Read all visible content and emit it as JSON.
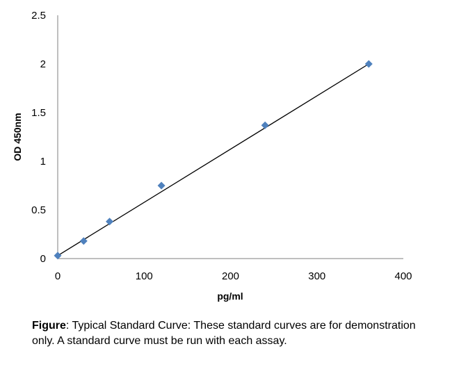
{
  "chart_data": {
    "type": "scatter",
    "title": "",
    "xlabel": "pg/ml",
    "ylabel": "OD 450nm",
    "xlim": [
      0,
      400
    ],
    "ylim": [
      0,
      2.5
    ],
    "x_ticks": [
      "0",
      "100",
      "200",
      "300",
      "400"
    ],
    "y_ticks": [
      "0",
      "0.5",
      "1",
      "1.5",
      "2",
      "2.5"
    ],
    "grid": false,
    "legend": "none",
    "series": [
      {
        "points": [
          {
            "x": 0,
            "y": 0.03
          },
          {
            "x": 30,
            "y": 0.18
          },
          {
            "x": 60,
            "y": 0.38
          },
          {
            "x": 120,
            "y": 0.75
          },
          {
            "x": 240,
            "y": 1.37
          },
          {
            "x": 360,
            "y": 2.0
          }
        ],
        "marker": "diamond",
        "color": "#4f81bd"
      }
    ],
    "trendline": {
      "type": "linear",
      "from": {
        "x": 0,
        "y": 0.03
      },
      "to": {
        "x": 360,
        "y": 2.0
      },
      "color": "#000000"
    }
  },
  "caption": {
    "bold": "Figure",
    "text": ": Typical Standard Curve: These standard curves are for demonstration  only. A standard curve must be run with each assay."
  }
}
